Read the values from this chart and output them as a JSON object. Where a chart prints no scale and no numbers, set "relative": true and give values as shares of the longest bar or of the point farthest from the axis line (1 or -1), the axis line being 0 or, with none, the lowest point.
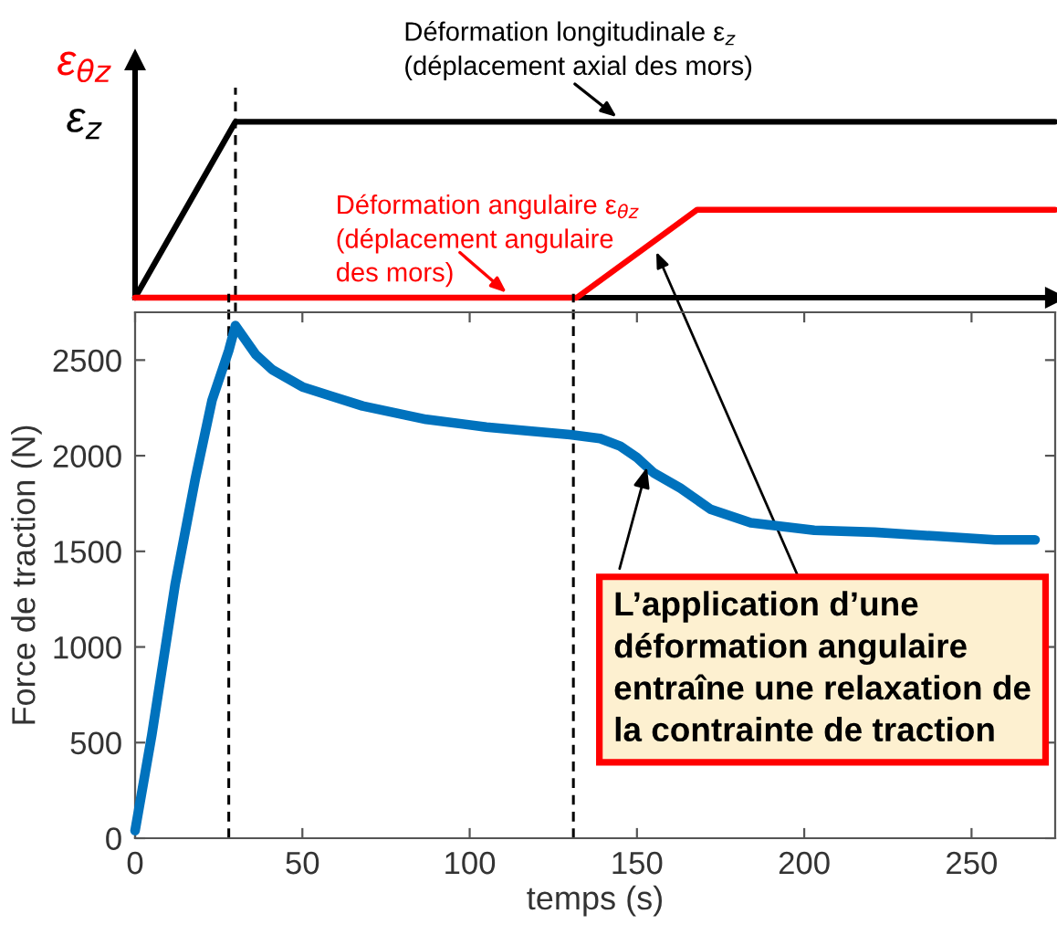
{
  "chart_data": [
    {
      "type": "line",
      "relative": true,
      "xlim": [
        0,
        275
      ],
      "tick_labels": false,
      "series": [
        {
          "name": "Déformation longitudinale ε$_{z}$\n(déplacement axial des mors)",
          "color": "#000000",
          "x": [
            0,
            30,
            275
          ],
          "values": [
            0,
            1,
            1
          ]
        },
        {
          "name": "Déformation angulaire ε$_{θz}$\n(déplacement angulaire\ndes mors)",
          "color": "#ff0000",
          "x": [
            0,
            132,
            168,
            275
          ],
          "values": [
            0,
            0,
            0.5,
            0.5
          ]
        }
      ],
      "ref_lines": [
        {
          "axis": "x",
          "value": 30,
          "color": "#000000",
          "line_style": "dashed"
        }
      ],
      "annotations": [
        "ε$_{θz}$",
        "ε$_{z}$"
      ]
    },
    {
      "type": "line",
      "xlabel": "temps (s)",
      "ylabel": "Force de traction (N)",
      "xlim": [
        0,
        275
      ],
      "ylim": [
        0,
        2750
      ],
      "xticks": [
        0,
        50,
        100,
        150,
        200,
        250
      ],
      "yticks": [
        0,
        500,
        1000,
        1500,
        2000,
        2500
      ],
      "series": [
        {
          "color": "#0072bd",
          "x": [
            0,
            5,
            12,
            18,
            23,
            28,
            30,
            36,
            41,
            50,
            59,
            68,
            87,
            105,
            117,
            130,
            139,
            145,
            150,
            155,
            163,
            172,
            184,
            203,
            221,
            239,
            257,
            269
          ],
          "values": [
            40,
            540,
            1330,
            1880,
            2290,
            2550,
            2680,
            2530,
            2450,
            2360,
            2310,
            2260,
            2190,
            2150,
            2130,
            2110,
            2090,
            2050,
            1990,
            1910,
            1830,
            1720,
            1650,
            1610,
            1600,
            1580,
            1560,
            1560
          ]
        }
      ],
      "ref_lines": [
        {
          "axis": "x",
          "value": 28,
          "color": "#000000",
          "line_style": "dashed"
        },
        {
          "axis": "x",
          "value": 131,
          "color": "#000000",
          "line_style": "dashed"
        }
      ],
      "annotations": [
        {
          "text": "L’application d’une\ndéformation angulaire\nentraîne une relaxation de\nla contrainte de traction",
          "x": 153,
          "y": 1940
        }
      ],
      "grid": false
    }
  ]
}
